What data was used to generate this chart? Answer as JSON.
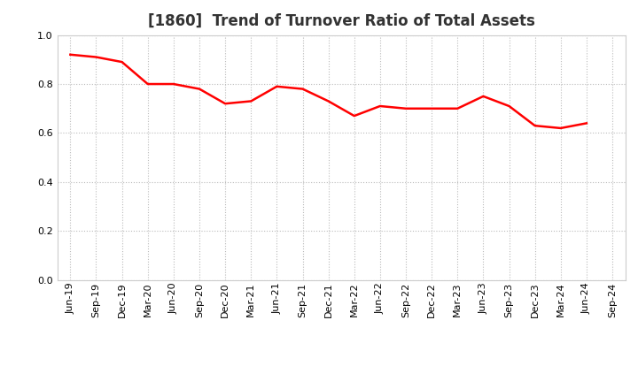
{
  "title": "[1860]  Trend of Turnover Ratio of Total Assets",
  "x_labels": [
    "Jun-19",
    "Sep-19",
    "Dec-19",
    "Mar-20",
    "Jun-20",
    "Sep-20",
    "Dec-20",
    "Mar-21",
    "Jun-21",
    "Sep-21",
    "Dec-21",
    "Mar-22",
    "Jun-22",
    "Sep-22",
    "Dec-22",
    "Mar-23",
    "Jun-23",
    "Sep-23",
    "Dec-23",
    "Mar-24",
    "Jun-24",
    "Sep-24"
  ],
  "y_values": [
    0.92,
    0.91,
    0.89,
    0.8,
    0.8,
    0.78,
    0.72,
    0.73,
    0.79,
    0.78,
    0.73,
    0.67,
    0.71,
    0.7,
    0.7,
    0.7,
    0.75,
    0.71,
    0.63,
    0.62,
    0.64,
    null
  ],
  "line_color": "#ff0000",
  "line_width": 1.8,
  "ylim": [
    0.0,
    1.0
  ],
  "yticks": [
    0.0,
    0.2,
    0.4,
    0.6,
    0.8,
    1.0
  ],
  "grid_color": "#bbbbbb",
  "grid_style": "dotted",
  "background_color": "#ffffff",
  "title_fontsize": 12,
  "tick_fontsize": 8,
  "title_color": "#333333"
}
